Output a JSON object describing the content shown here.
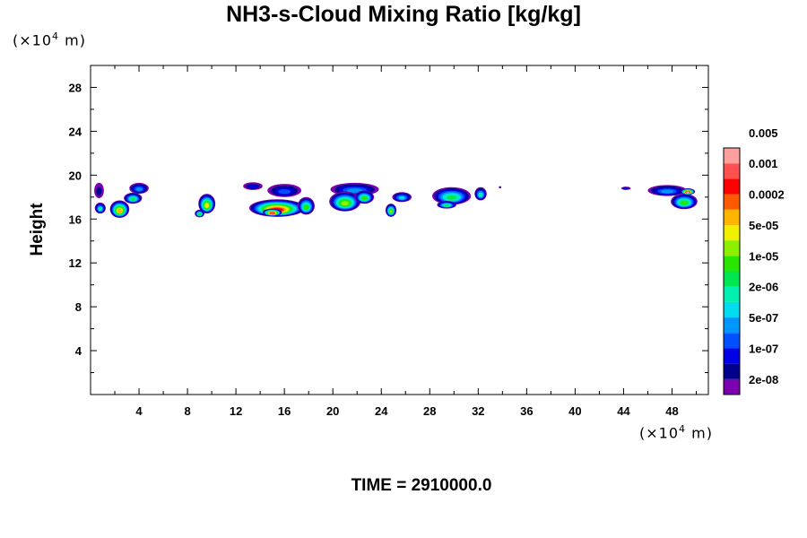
{
  "chart_data": {
    "type": "heatmap",
    "title": "NH3-s-Cloud Mixing Ratio [kg/kg]",
    "ylabel": "Height",
    "xlabel": "",
    "x_unit_prefix": "(×10",
    "x_unit_exp": "4",
    "x_unit_suffix": " m)",
    "y_unit_prefix": "(×10",
    "y_unit_exp": "4",
    "y_unit_suffix": " m)",
    "time_label": "TIME = 2910000.0",
    "xlim": [
      0,
      51
    ],
    "ylim": [
      0,
      30
    ],
    "x_ticks": [
      "4",
      "8",
      "12",
      "16",
      "20",
      "24",
      "28",
      "32",
      "36",
      "40",
      "44",
      "48"
    ],
    "y_ticks": [
      "4",
      "8",
      "12",
      "16",
      "20",
      "24",
      "28"
    ],
    "colorbar": {
      "colors": [
        "#7a00b0",
        "#00008c",
        "#0000e6",
        "#0050ff",
        "#0096ff",
        "#00dcf0",
        "#00f0b0",
        "#00e650",
        "#28e600",
        "#8cf000",
        "#f0f000",
        "#ffb400",
        "#ff5a00",
        "#ff0000",
        "#ff5050",
        "#ffa0a0"
      ],
      "labels": [
        "2e-08",
        "1e-07",
        "5e-07",
        "2e-06",
        "1e-05",
        "5e-05",
        "0.0002",
        "0.001",
        "0.005"
      ],
      "label_levels": [
        1,
        3,
        5,
        7,
        9,
        11,
        13,
        15,
        17
      ]
    },
    "clouds": [
      {
        "x": 0.7,
        "y": 18.6,
        "w": 0.8,
        "h": 1.4,
        "core": 1
      },
      {
        "x": 0.8,
        "y": 17.0,
        "w": 0.9,
        "h": 1.0,
        "core": 6
      },
      {
        "x": 2.4,
        "y": 16.9,
        "w": 1.6,
        "h": 1.6,
        "core": 11
      },
      {
        "x": 3.5,
        "y": 17.9,
        "w": 1.5,
        "h": 1.0,
        "core": 7
      },
      {
        "x": 4.0,
        "y": 18.8,
        "w": 1.6,
        "h": 1.0,
        "core": 4
      },
      {
        "x": 9.6,
        "y": 17.4,
        "w": 1.4,
        "h": 1.8,
        "core": 10
      },
      {
        "x": 9.0,
        "y": 16.5,
        "w": 0.8,
        "h": 0.7,
        "core": 8
      },
      {
        "x": 13.4,
        "y": 19.0,
        "w": 1.6,
        "h": 0.7,
        "core": 2
      },
      {
        "x": 16.0,
        "y": 18.6,
        "w": 2.8,
        "h": 1.2,
        "core": 3
      },
      {
        "x": 15.4,
        "y": 17.0,
        "w": 4.6,
        "h": 1.6,
        "core": 13
      },
      {
        "x": 15.0,
        "y": 16.6,
        "w": 1.6,
        "h": 0.7,
        "core": 14
      },
      {
        "x": 17.8,
        "y": 17.2,
        "w": 1.4,
        "h": 1.6,
        "core": 8
      },
      {
        "x": 21.8,
        "y": 18.7,
        "w": 4.0,
        "h": 1.2,
        "core": 4
      },
      {
        "x": 21.0,
        "y": 17.6,
        "w": 2.6,
        "h": 1.8,
        "core": 9
      },
      {
        "x": 22.6,
        "y": 18.0,
        "w": 1.6,
        "h": 1.2,
        "core": 8
      },
      {
        "x": 24.8,
        "y": 16.8,
        "w": 0.9,
        "h": 1.2,
        "core": 9
      },
      {
        "x": 25.7,
        "y": 18.0,
        "w": 1.6,
        "h": 0.9,
        "core": 5
      },
      {
        "x": 29.8,
        "y": 18.1,
        "w": 3.2,
        "h": 1.6,
        "core": 7
      },
      {
        "x": 29.4,
        "y": 17.3,
        "w": 1.6,
        "h": 0.7,
        "core": 7
      },
      {
        "x": 32.2,
        "y": 18.3,
        "w": 1.0,
        "h": 1.2,
        "core": 6
      },
      {
        "x": 33.8,
        "y": 18.9,
        "w": 0.2,
        "h": 0.2,
        "core": 1
      },
      {
        "x": 44.2,
        "y": 18.8,
        "w": 0.8,
        "h": 0.3,
        "core": 2
      },
      {
        "x": 47.6,
        "y": 18.6,
        "w": 3.2,
        "h": 1.0,
        "core": 4
      },
      {
        "x": 49.0,
        "y": 17.6,
        "w": 2.2,
        "h": 1.4,
        "core": 8
      },
      {
        "x": 49.3,
        "y": 18.5,
        "w": 1.2,
        "h": 0.6,
        "core": 15
      }
    ]
  }
}
